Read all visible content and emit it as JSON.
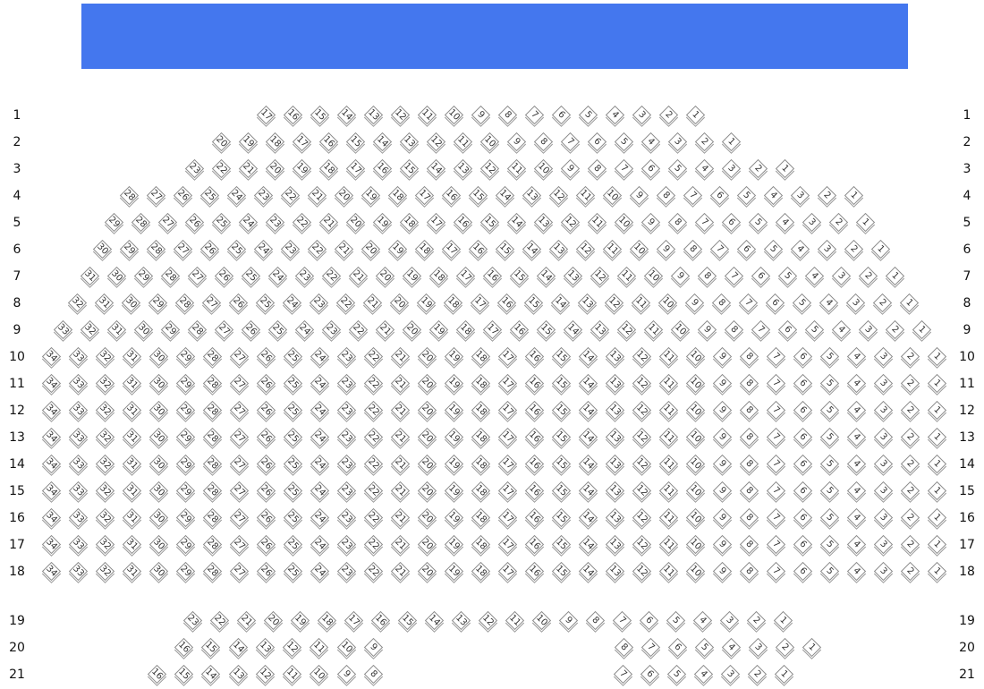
{
  "stage": {
    "color": "#4477ee"
  },
  "seat_icon": "diamond-seat",
  "rows": [
    {
      "label": "1",
      "blocks": [
        {
          "from": 17,
          "to": 1
        }
      ]
    },
    {
      "label": "2",
      "blocks": [
        {
          "from": 20,
          "to": 1
        }
      ]
    },
    {
      "label": "3",
      "blocks": [
        {
          "from": 23,
          "to": 1
        }
      ]
    },
    {
      "label": "4",
      "blocks": [
        {
          "from": 28,
          "to": 1
        }
      ]
    },
    {
      "label": "5",
      "blocks": [
        {
          "from": 29,
          "to": 1
        }
      ]
    },
    {
      "label": "6",
      "blocks": [
        {
          "from": 30,
          "to": 1
        }
      ]
    },
    {
      "label": "7",
      "blocks": [
        {
          "from": 31,
          "to": 1
        }
      ]
    },
    {
      "label": "8",
      "blocks": [
        {
          "from": 32,
          "to": 1
        }
      ]
    },
    {
      "label": "9",
      "blocks": [
        {
          "from": 33,
          "to": 1
        }
      ]
    },
    {
      "label": "10",
      "blocks": [
        {
          "from": 34,
          "to": 1
        }
      ]
    },
    {
      "label": "11",
      "blocks": [
        {
          "from": 34,
          "to": 1
        }
      ]
    },
    {
      "label": "12",
      "blocks": [
        {
          "from": 34,
          "to": 1
        }
      ]
    },
    {
      "label": "13",
      "blocks": [
        {
          "from": 34,
          "to": 1
        }
      ]
    },
    {
      "label": "14",
      "blocks": [
        {
          "from": 34,
          "to": 1
        }
      ]
    },
    {
      "label": "15",
      "blocks": [
        {
          "from": 34,
          "to": 1
        }
      ]
    },
    {
      "label": "16",
      "blocks": [
        {
          "from": 34,
          "to": 1
        }
      ]
    },
    {
      "label": "17",
      "blocks": [
        {
          "from": 34,
          "to": 1
        }
      ]
    },
    {
      "label": "18",
      "blocks": [
        {
          "from": 34,
          "to": 1
        }
      ]
    },
    {
      "label": "19",
      "blocks": [
        {
          "from": 23,
          "to": 1
        }
      ]
    },
    {
      "label": "20",
      "blocks": [
        {
          "from": 16,
          "to": 9
        },
        {
          "from": 8,
          "to": 1
        }
      ]
    },
    {
      "label": "21",
      "blocks": [
        {
          "from": 16,
          "to": 8
        },
        {
          "from": 7,
          "to": 1
        }
      ]
    }
  ]
}
